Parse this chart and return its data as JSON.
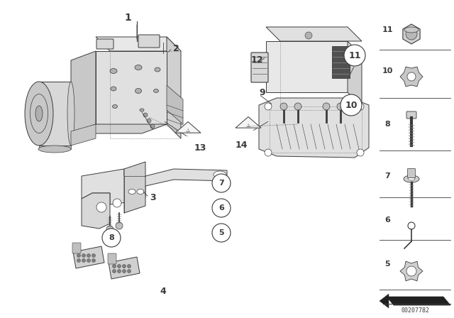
{
  "bg_color": "#ffffff",
  "lc": "#3a3a3a",
  "lw": 0.7,
  "watermark": "00207782",
  "fig_w": 6.4,
  "fig_h": 4.48,
  "dpi": 100
}
